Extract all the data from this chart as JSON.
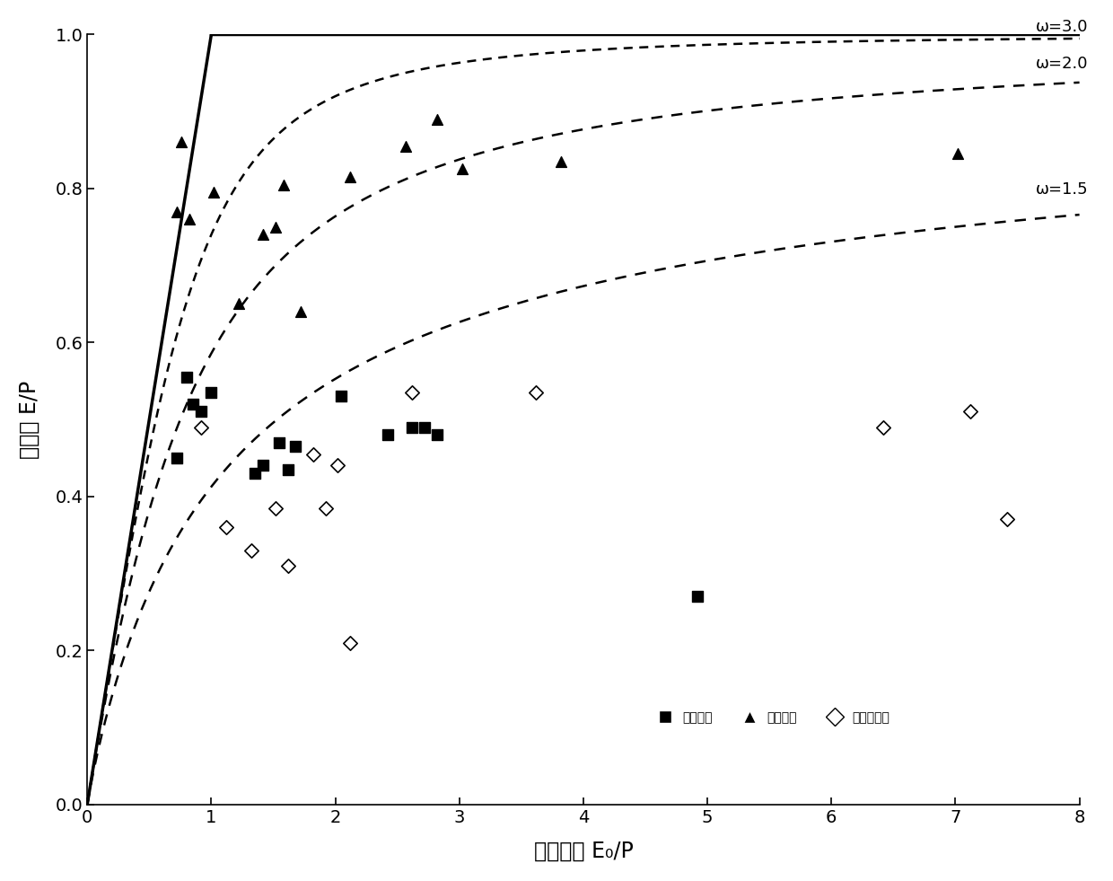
{
  "xlabel": "干旱指数 E₀/P",
  "ylabel": "蒸发率 E/P",
  "xlim": [
    0,
    8
  ],
  "ylim": [
    0,
    1.0
  ],
  "xticks": [
    0,
    1,
    2,
    3,
    4,
    5,
    6,
    7,
    8
  ],
  "yticks": [
    0.0,
    0.2,
    0.4,
    0.6,
    0.8,
    1.0
  ],
  "omega_values": [
    1.5,
    2.0,
    3.0
  ],
  "omega_labels": [
    "ω=1.5",
    "ω=2.0",
    "ω=3.0"
  ],
  "series1_label": "黄河源区",
  "series2_label": "长江源区",
  "series3_label": "澜沧江源区",
  "series1_x": [
    0.72,
    0.8,
    0.85,
    0.92,
    1.0,
    1.35,
    1.42,
    1.55,
    1.62,
    1.68,
    2.05,
    2.42,
    2.62,
    2.72,
    2.82,
    4.92
  ],
  "series1_y": [
    0.45,
    0.555,
    0.52,
    0.51,
    0.535,
    0.43,
    0.44,
    0.47,
    0.435,
    0.465,
    0.53,
    0.48,
    0.49,
    0.49,
    0.48,
    0.27
  ],
  "series2_x": [
    0.72,
    0.76,
    0.82,
    1.02,
    1.22,
    1.42,
    1.52,
    1.58,
    1.72,
    2.12,
    2.57,
    2.82,
    3.02,
    3.82,
    7.02
  ],
  "series2_y": [
    0.77,
    0.86,
    0.76,
    0.795,
    0.65,
    0.74,
    0.75,
    0.805,
    0.64,
    0.815,
    0.855,
    0.89,
    0.825,
    0.835,
    0.845
  ],
  "series3_x": [
    0.92,
    1.12,
    1.32,
    1.52,
    1.62,
    1.82,
    1.92,
    2.02,
    2.12,
    2.62,
    3.62,
    6.42,
    7.12,
    7.42
  ],
  "series3_y": [
    0.49,
    0.36,
    0.33,
    0.385,
    0.31,
    0.455,
    0.385,
    0.44,
    0.21,
    0.535,
    0.535,
    0.49,
    0.51,
    0.37
  ],
  "background_color": "#ffffff",
  "fontsize_axis_label": 17,
  "fontsize_tick": 14,
  "fontsize_legend": 15,
  "fontsize_omega": 13,
  "marker_size": 72
}
